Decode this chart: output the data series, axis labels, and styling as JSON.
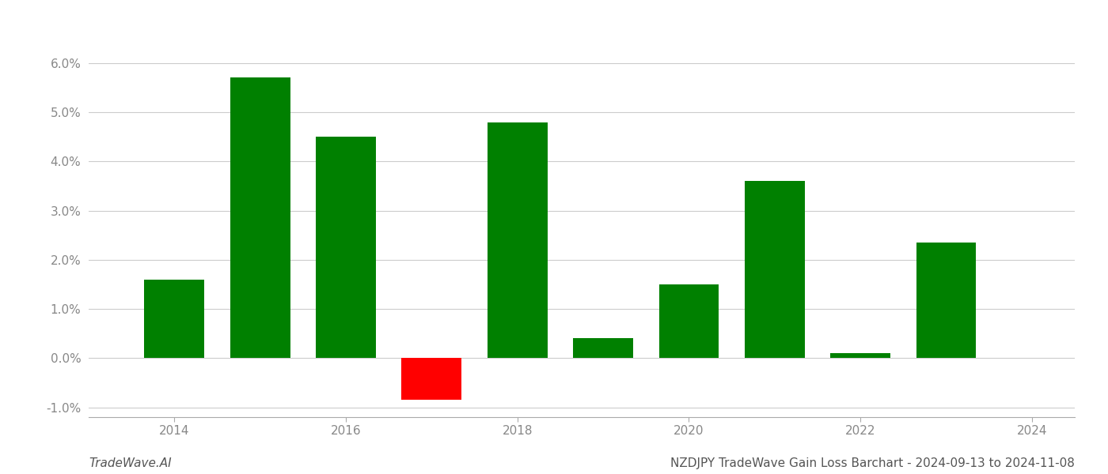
{
  "years": [
    2014,
    2015,
    2016,
    2017,
    2018,
    2019,
    2020,
    2021,
    2022,
    2023
  ],
  "values": [
    0.016,
    0.057,
    0.045,
    -0.0085,
    0.048,
    0.004,
    0.015,
    0.036,
    0.001,
    0.0235
  ],
  "colors": [
    "#008000",
    "#008000",
    "#008000",
    "#ff0000",
    "#008000",
    "#008000",
    "#008000",
    "#008000",
    "#008000",
    "#008000"
  ],
  "ylim": [
    -0.012,
    0.068
  ],
  "yticks": [
    -0.01,
    0.0,
    0.01,
    0.02,
    0.03,
    0.04,
    0.05,
    0.06
  ],
  "xlabel": "",
  "ylabel": "",
  "title": "",
  "footer_left": "TradeWave.AI",
  "footer_right": "NZDJPY TradeWave Gain Loss Barchart - 2024-09-13 to 2024-11-08",
  "background_color": "#ffffff",
  "bar_width": 0.7,
  "grid_color": "#cccccc",
  "xtick_labels": [
    "2014",
    "2016",
    "2018",
    "2020",
    "2022",
    "2024"
  ],
  "xtick_positions": [
    2014,
    2016,
    2018,
    2020,
    2022,
    2024
  ],
  "xlim": [
    2013.0,
    2024.5
  ]
}
